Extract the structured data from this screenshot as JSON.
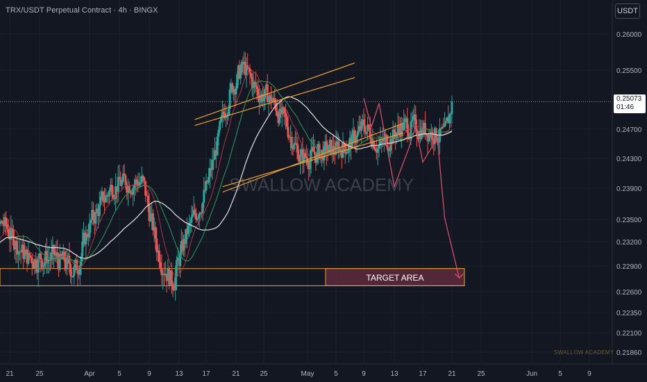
{
  "header": {
    "title": "TRX/USDT Perpetual Contract · 4h · BINGX",
    "currency_button": "USDT"
  },
  "price_tag": {
    "price": "0.25073",
    "countdown": "01:46"
  },
  "colors": {
    "background": "#131722",
    "up": "#26a69a",
    "down": "#ef5350",
    "channel": "#f0a52a",
    "projection": "#d4506a",
    "target_fill": "#5a2a3c"
  },
  "annotations": {
    "target_area": "TARGET AREA",
    "watermark": "SWALLOW ACADEMY",
    "corner_watermark": "SWALLOW ACADEMY"
  },
  "chart_data": {
    "type": "candlestick",
    "symbol": "TRX/USDT",
    "interval": "4h",
    "y_ticks": [
      0.26,
      0.255,
      0.247,
      0.243,
      0.239,
      0.235,
      0.232,
      0.229,
      0.226,
      0.2235,
      0.221,
      0.2186
    ],
    "y_tick_labels": [
      "0.26000",
      "0.25500",
      "0.24700",
      "0.24300",
      "0.23900",
      "0.23500",
      "0.23200",
      "0.22900",
      "0.22600",
      "0.22350",
      "0.22100",
      "0.21860"
    ],
    "x_tick_labels": [
      "21",
      "25",
      "Apr",
      "5",
      "9",
      "13",
      "17",
      "21",
      "25",
      "May",
      "5",
      "9",
      "13",
      "17",
      "21",
      "25",
      "Jun",
      "5",
      "9"
    ],
    "last_price": 0.25073,
    "target_area": [
      0.2267,
      0.2287
    ],
    "ascending_channel": {
      "start": "Apr 19",
      "end": "May 11"
    },
    "projection_path": [
      {
        "date": "May 9",
        "price": 0.2512
      },
      {
        "date": "May 10",
        "price": 0.2473
      },
      {
        "date": "May 11",
        "price": 0.2505
      },
      {
        "date": "May 13",
        "price": 0.2392
      },
      {
        "date": "May 15",
        "price": 0.2443
      },
      {
        "date": "May 16",
        "price": 0.2474
      },
      {
        "date": "May 17",
        "price": 0.2425
      },
      {
        "date": "May 19",
        "price": 0.2458
      },
      {
        "date": "May 20",
        "price": 0.2352
      },
      {
        "date": "May 22",
        "price": 0.2276
      }
    ],
    "grid": true
  }
}
